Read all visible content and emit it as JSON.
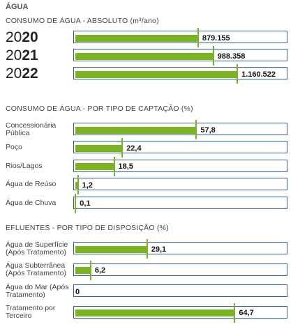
{
  "header": {
    "title": "ÁGUA"
  },
  "chart_data": [
    {
      "type": "bar",
      "orientation": "horizontal",
      "title": "CONSUMO DE ÁGUA - ABSOLUTO (m³/ano)",
      "categories": [
        "2020",
        "2021",
        "2022"
      ],
      "values": [
        879155,
        988358,
        1160522
      ],
      "value_labels": [
        "879.155",
        "988.358",
        "1.160.522"
      ],
      "xlim": [
        0,
        1500000
      ],
      "color": "#7ab51d"
    },
    {
      "type": "bar",
      "orientation": "horizontal",
      "title": "CONSUMO DE ÁGUA - POR TIPO DE CAPTAÇÃO (%)",
      "categories": [
        "Concessionária Pública",
        "Poço",
        "Rios/Lagos",
        "Água de Reúso",
        "Água de Chuva"
      ],
      "values": [
        57.8,
        22.4,
        18.5,
        1.2,
        0.1
      ],
      "value_labels": [
        "57,8",
        "22,4",
        "18,5",
        "1,2",
        "0,1"
      ],
      "xlim": [
        0,
        100
      ],
      "color": "#7ab51d"
    },
    {
      "type": "bar",
      "orientation": "horizontal",
      "title": "EFLUENTES - POR TIPO DE DISPOSIÇÃO (%)",
      "categories": [
        "Água de Superfície (Após Tratamento)",
        "Água Subterrânea (Após Tratamento)",
        "Água do Mar (Após Tratamento)",
        "Tratamento por Terceiro"
      ],
      "values": [
        29.1,
        6.2,
        0,
        64.7
      ],
      "value_labels": [
        "29,1",
        "6,2",
        "0",
        "64,7"
      ],
      "xlim": [
        0,
        85
      ],
      "color": "#7ab51d"
    }
  ]
}
